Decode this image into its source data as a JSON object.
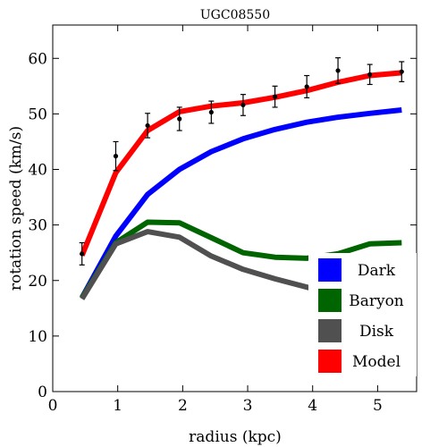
{
  "chart_data": {
    "type": "line",
    "title": "UGC08550",
    "xlabel": "radius (kpc)",
    "ylabel": "rotation speed (km/s)",
    "xlim": [
      0,
      5.6
    ],
    "ylim": [
      0,
      66
    ],
    "xticks": [
      0,
      1,
      2,
      3,
      4,
      5
    ],
    "yticks": [
      0,
      10,
      20,
      30,
      40,
      50,
      60
    ],
    "grid": false,
    "legend_position": "bottom-right",
    "series": [
      {
        "name": "Dark",
        "color": "#0000ff",
        "x": [
          0.45,
          0.97,
          1.46,
          1.95,
          2.44,
          2.93,
          3.42,
          3.91,
          4.39,
          4.88,
          5.37
        ],
        "y": [
          16.9,
          28.0,
          35.5,
          40.0,
          43.2,
          45.5,
          47.2,
          48.5,
          49.4,
          50.1,
          50.7
        ]
      },
      {
        "name": "Baryon",
        "color": "#006400",
        "x": [
          0.45,
          0.97,
          1.46,
          1.95,
          2.44,
          2.93,
          3.42,
          3.91,
          4.39,
          4.88,
          5.37
        ],
        "y": [
          16.9,
          26.8,
          30.5,
          30.4,
          27.7,
          25.0,
          24.2,
          24.0,
          24.8,
          26.6,
          26.8
        ]
      },
      {
        "name": "Disk",
        "color": "#505050",
        "x": [
          0.45,
          0.97,
          1.46,
          1.95,
          2.44,
          2.93,
          3.42,
          3.91,
          4.39,
          4.88,
          5.37
        ],
        "y": [
          16.7,
          26.6,
          28.8,
          27.8,
          24.4,
          22.0,
          20.3,
          18.8,
          17.3,
          16.0,
          15.0
        ]
      },
      {
        "name": "Model",
        "color": "#ff0000",
        "x": [
          0.45,
          0.97,
          1.46,
          1.95,
          2.44,
          2.93,
          3.42,
          3.91,
          4.39,
          4.88,
          5.37
        ],
        "y": [
          24.5,
          39.4,
          47.0,
          50.4,
          51.4,
          52.0,
          53.0,
          54.2,
          55.7,
          56.9,
          57.4
        ]
      }
    ],
    "observed": {
      "x": [
        0.45,
        0.97,
        1.46,
        1.95,
        2.44,
        2.93,
        3.42,
        3.91,
        4.39,
        4.88,
        5.37
      ],
      "y": [
        24.8,
        42.4,
        47.9,
        49.1,
        50.3,
        51.6,
        53.1,
        54.9,
        57.8,
        57.1,
        57.6
      ],
      "err": [
        2.0,
        2.6,
        2.2,
        2.1,
        2.0,
        1.9,
        1.9,
        2.0,
        2.3,
        1.8,
        1.8
      ]
    }
  }
}
